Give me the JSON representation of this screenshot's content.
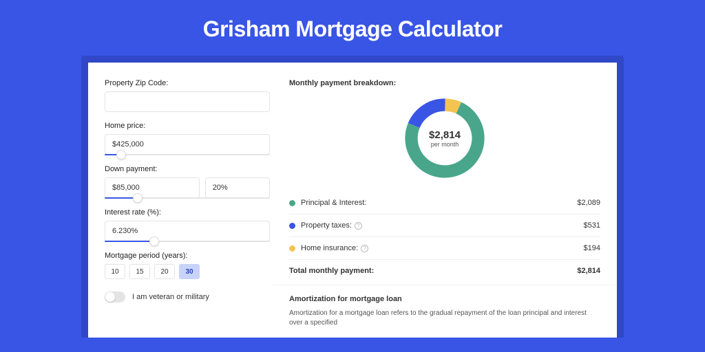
{
  "page": {
    "title": "Grisham Mortgage Calculator",
    "background_color": "#3955e5",
    "card_shadow_color": "#3047c7",
    "card_background": "#ffffff"
  },
  "form": {
    "zip": {
      "label": "Property Zip Code:",
      "value": ""
    },
    "home_price": {
      "label": "Home price:",
      "value": "$425,000",
      "slider_pct": 10
    },
    "down_payment": {
      "label": "Down payment:",
      "amount": "$85,000",
      "pct": "20%",
      "slider_pct": 20
    },
    "interest_rate": {
      "label": "Interest rate (%):",
      "value": "6.230%",
      "slider_pct": 30
    },
    "period": {
      "label": "Mortgage period (years):",
      "options": [
        "10",
        "15",
        "20",
        "30"
      ],
      "selected": "30"
    },
    "veteran": {
      "label": "I am veteran or military",
      "on": false
    }
  },
  "breakdown": {
    "title": "Monthly payment breakdown:",
    "donut": {
      "center_amount": "$2,814",
      "center_sub": "per month",
      "slices": [
        {
          "label": "Principal & Interest:",
          "value": "$2,089",
          "color": "#49a68a",
          "pct": 74.2
        },
        {
          "label": "Property taxes:",
          "value": "$531",
          "color": "#3955e5",
          "pct": 18.9,
          "info": true
        },
        {
          "label": "Home insurance:",
          "value": "$194",
          "color": "#f3c451",
          "pct": 6.9,
          "info": true
        }
      ]
    },
    "total": {
      "label": "Total monthly payment:",
      "value": "$2,814"
    }
  },
  "amortization": {
    "title": "Amortization for mortgage loan",
    "text": "Amortization for a mortgage loan refers to the gradual repayment of the loan principal and interest over a specified"
  }
}
